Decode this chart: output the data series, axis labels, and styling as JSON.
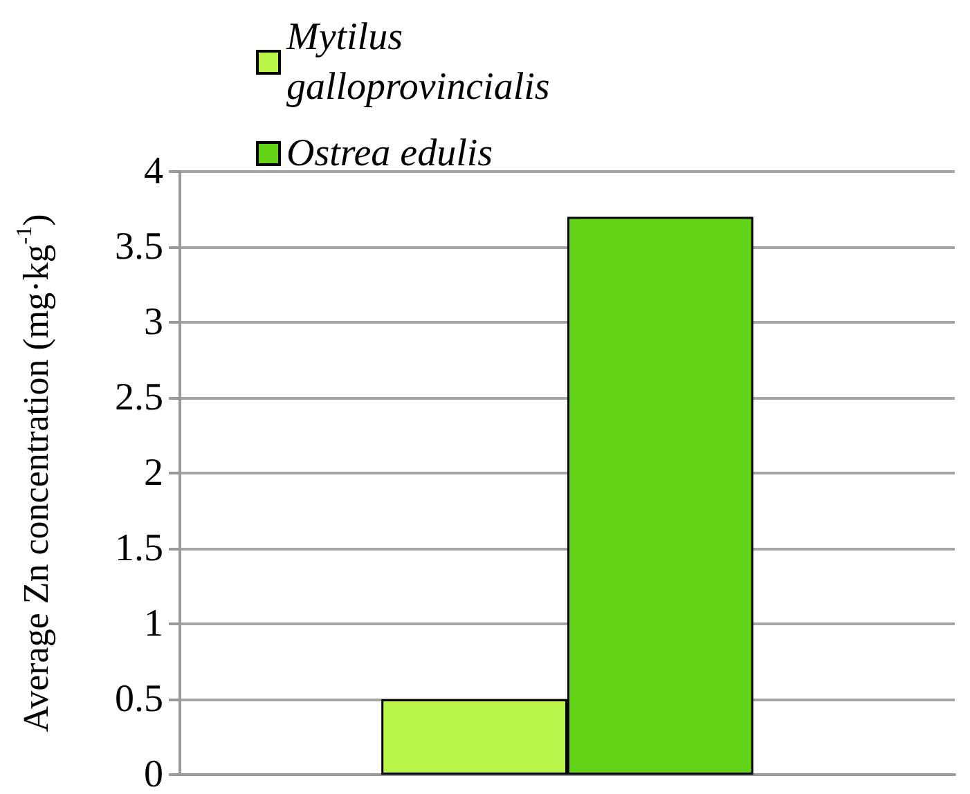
{
  "chart_data": {
    "type": "bar",
    "ylabel": "Average Zn concentration (mg·kg$^{-1}$)",
    "categories": [
      null
    ],
    "series": [
      {
        "name": "Mytilus galloprovincialis",
        "color": "#b9f548",
        "values": [
          0.5
        ]
      },
      {
        "name": "Ostrea edulis",
        "color": "#63d317",
        "values": [
          3.7
        ]
      }
    ],
    "ylim": [
      0,
      4
    ],
    "yticks": [
      0,
      0.5,
      1,
      1.5,
      2,
      2.5,
      3,
      3.5,
      4
    ],
    "grid": "y",
    "legend": "top left"
  }
}
